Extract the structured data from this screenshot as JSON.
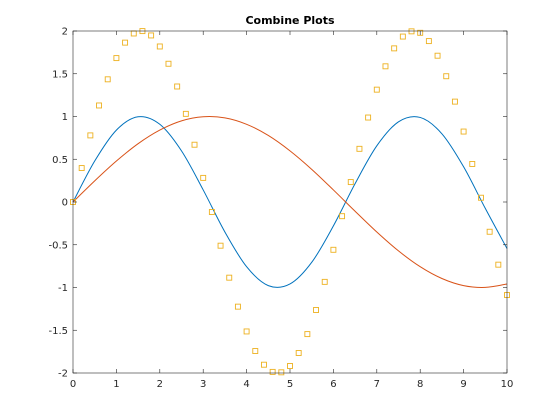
{
  "chart_data": {
    "type": "line",
    "title": "Combine Plots",
    "xlabel": "",
    "ylabel": "",
    "xlim": [
      0,
      10
    ],
    "ylim": [
      -2,
      2
    ],
    "x_ticks": [
      "0",
      "1",
      "2",
      "3",
      "4",
      "5",
      "6",
      "7",
      "8",
      "9",
      "10"
    ],
    "y_ticks": [
      "-2",
      "-1.5",
      "-1",
      "-0.5",
      "0",
      "0.5",
      "1",
      "1.5",
      "2"
    ],
    "grid": false,
    "legend": "none",
    "colors": {
      "axis": "#262626",
      "series_1": "#0072BD",
      "series_2": "#D95319",
      "series_3": "#EDB120"
    },
    "series": [
      {
        "style": "line",
        "color": "#0072BD",
        "x": [
          0,
          0.5,
          1,
          1.5,
          2,
          2.5,
          3,
          3.5,
          4,
          4.5,
          5,
          5.5,
          6,
          6.5,
          7,
          7.5,
          8,
          8.5,
          9,
          9.5,
          10
        ],
        "y": [
          0,
          0.479,
          0.841,
          0.997,
          0.909,
          0.598,
          0.141,
          -0.351,
          -0.757,
          -0.978,
          -0.959,
          -0.706,
          -0.279,
          0.215,
          0.657,
          0.938,
          0.989,
          0.798,
          0.412,
          -0.075,
          -0.544
        ]
      },
      {
        "style": "line",
        "color": "#D95319",
        "x": [
          0,
          0.5,
          1,
          1.5,
          2,
          2.5,
          3,
          3.5,
          4,
          4.5,
          5,
          5.5,
          6,
          6.5,
          7,
          7.5,
          8,
          8.5,
          9,
          9.5,
          10
        ],
        "y": [
          0,
          0.247,
          0.479,
          0.682,
          0.841,
          0.949,
          0.997,
          0.984,
          0.909,
          0.778,
          0.598,
          0.382,
          0.141,
          -0.108,
          -0.351,
          -0.572,
          -0.757,
          -0.895,
          -0.978,
          -0.999,
          -0.959
        ]
      },
      {
        "style": "markers",
        "marker": "square",
        "color": "#EDB120",
        "x": [
          0,
          0.2,
          0.4,
          0.6,
          0.8,
          1.0,
          1.2,
          1.4,
          1.6,
          1.8,
          2.0,
          2.2,
          2.4,
          2.6,
          2.8,
          3.0,
          3.2,
          3.4,
          3.6,
          3.8,
          4.0,
          4.2,
          4.4,
          4.6,
          4.8,
          5.0,
          5.2,
          5.4,
          5.6,
          5.8,
          6.0,
          6.2,
          6.4,
          6.6,
          6.8,
          7.0,
          7.2,
          7.4,
          7.6,
          7.8,
          8.0,
          8.2,
          8.4,
          8.6,
          8.8,
          9.0,
          9.2,
          9.4,
          9.6,
          9.8,
          10.0
        ],
        "y": [
          0,
          0.397,
          0.779,
          1.129,
          1.435,
          1.683,
          1.864,
          1.971,
          1.999,
          1.948,
          1.819,
          1.617,
          1.351,
          1.031,
          0.67,
          0.282,
          -0.117,
          -0.511,
          -0.885,
          -1.224,
          -1.514,
          -1.743,
          -1.903,
          -1.987,
          -1.992,
          -1.918,
          -1.766,
          -1.545,
          -1.263,
          -0.934,
          -0.559,
          -0.166,
          0.233,
          0.622,
          0.988,
          1.314,
          1.587,
          1.797,
          1.935,
          1.996,
          1.979,
          1.882,
          1.711,
          1.471,
          1.174,
          0.824,
          0.445,
          0.05,
          -0.348,
          -0.733,
          -1.088
        ]
      }
    ]
  }
}
